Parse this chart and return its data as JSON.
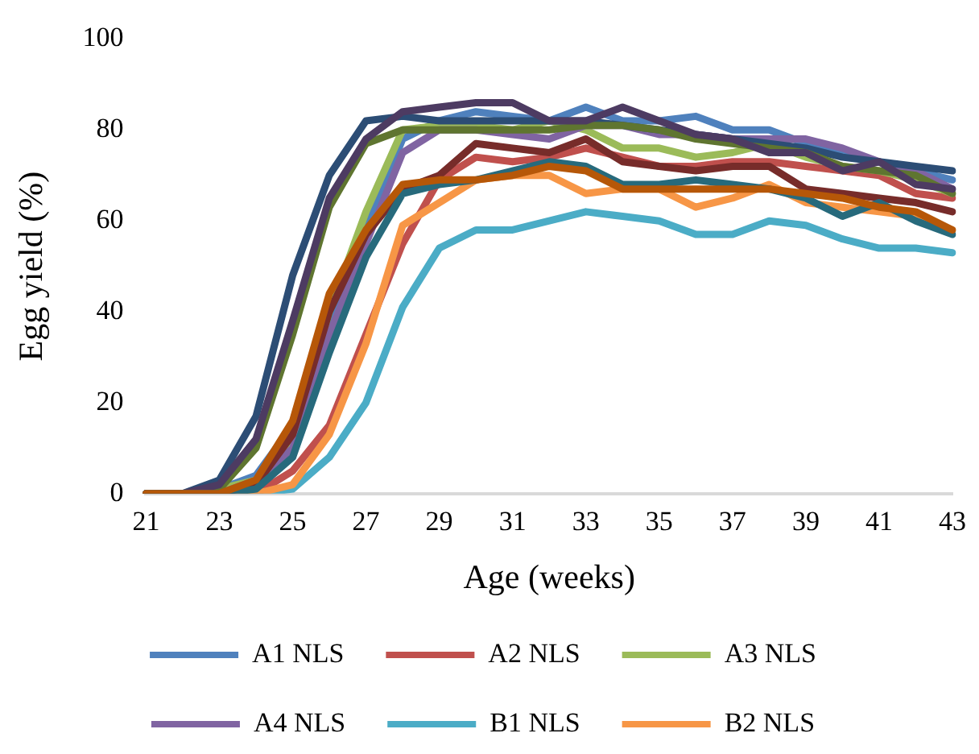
{
  "chart_data": {
    "type": "line",
    "xlabel": "Age (weeks)",
    "ylabel": "Egg yield (%)",
    "categories": [
      "21",
      null,
      "23",
      null,
      "25",
      null,
      "27",
      null,
      "29",
      null,
      "31",
      null,
      "33",
      null,
      "35",
      null,
      "37",
      null,
      "39",
      null,
      "41",
      null,
      "43"
    ],
    "ylim": [
      0,
      100
    ],
    "yticks": [
      0,
      20,
      40,
      60,
      80,
      100
    ],
    "grid": false,
    "legend": "bottom",
    "marker": "none",
    "line_style": "solid",
    "series": [
      {
        "name": "A1 NLS",
        "color": "#4f81bd",
        "values": [
          0,
          0,
          1,
          4,
          15,
          38,
          58,
          78,
          82,
          84,
          83,
          82,
          85,
          82,
          82,
          83,
          80,
          80,
          77,
          75,
          73,
          71,
          69
        ]
      },
      {
        "name": "A2 NLS",
        "color": "#c0504d",
        "values": [
          0,
          0,
          0,
          0,
          5,
          15,
          35,
          55,
          69,
          74,
          73,
          74,
          76,
          74,
          72,
          72,
          73,
          73,
          72,
          71,
          70,
          66,
          65
        ]
      },
      {
        "name": "A3 NLS",
        "color": "#9bbb59",
        "values": [
          0,
          0,
          1,
          3,
          12,
          40,
          62,
          80,
          81,
          81,
          80,
          82,
          80,
          76,
          76,
          74,
          75,
          77,
          74,
          72,
          71,
          69,
          66
        ]
      },
      {
        "name": "A4 NLS",
        "color": "#8064a2",
        "values": [
          0,
          0,
          0,
          3,
          10,
          35,
          55,
          75,
          80,
          80,
          79,
          78,
          81,
          81,
          79,
          79,
          78,
          78,
          78,
          76,
          73,
          71,
          67
        ]
      },
      {
        "name": "B1 NLS",
        "color": "#4bacc6",
        "values": [
          0,
          0,
          0,
          0,
          1,
          8,
          20,
          41,
          54,
          58,
          58,
          60,
          62,
          61,
          60,
          57,
          57,
          60,
          59,
          56,
          54,
          54,
          53
        ]
      },
      {
        "name": "B2 NLS",
        "color": "#f79646",
        "values": [
          null,
          null,
          0,
          0,
          2,
          13,
          33,
          59,
          64,
          69,
          70,
          70,
          66,
          67,
          67,
          63,
          65,
          68,
          64,
          63,
          62,
          61,
          58
        ]
      },
      {
        "color": "#2c4d75",
        "values": [
          0,
          0,
          3,
          17,
          48,
          70,
          82,
          83,
          82,
          82,
          82,
          82,
          82,
          81,
          80,
          79,
          78,
          77,
          76,
          74,
          73,
          72,
          71
        ]
      },
      {
        "color": "#772c2a",
        "values": [
          0,
          0,
          0,
          2,
          13,
          40,
          57,
          67,
          70,
          77,
          76,
          75,
          78,
          73,
          72,
          71,
          72,
          72,
          67,
          66,
          65,
          64,
          62
        ]
      },
      {
        "color": "#5f7530",
        "values": [
          0,
          0,
          1,
          10,
          35,
          63,
          77,
          80,
          80,
          80,
          80,
          80,
          81,
          81,
          80,
          78,
          77,
          76,
          75,
          72,
          71,
          70,
          66
        ]
      },
      {
        "color": "#4d3b62",
        "values": [
          0,
          0,
          2,
          12,
          38,
          65,
          78,
          84,
          85,
          86,
          86,
          82,
          82,
          85,
          82,
          79,
          78,
          75,
          75,
          71,
          73,
          68,
          67
        ]
      },
      {
        "color": "#276a7c",
        "values": [
          0,
          0,
          0,
          1,
          8,
          31,
          52,
          66,
          68,
          69,
          71,
          73,
          72,
          68,
          68,
          69,
          68,
          67,
          65,
          61,
          64,
          60,
          57
        ]
      },
      {
        "color": "#b65708",
        "values": [
          0,
          0,
          0,
          3,
          16,
          44,
          58,
          68,
          69,
          69,
          70,
          72,
          71,
          67,
          67,
          67,
          67,
          67,
          66,
          65,
          63,
          62,
          58
        ]
      }
    ]
  }
}
